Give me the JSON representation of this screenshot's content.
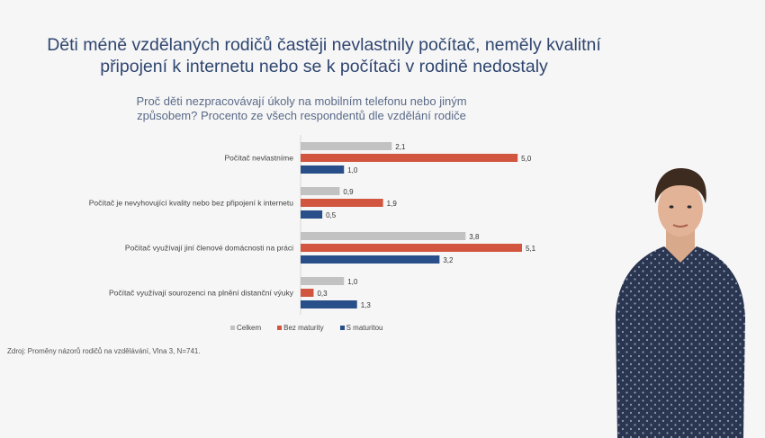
{
  "slide": {
    "title": "Děti méně vzdělaných rodičů častěji nevlastnily počítač, neměly kvalitní připojení k internetu nebo se k počítači v rodině nedostaly",
    "source": "Zdroj: Proměny názorů rodičů na vzdělávání, Vlna 3, N=741."
  },
  "colors": {
    "celkem": "#c2c2c2",
    "bez": "#d2553f",
    "s": "#284f8a"
  },
  "chart_data": {
    "type": "bar",
    "orientation": "horizontal",
    "title": "Proč děti nezpracovávají úkoly na mobilním telefonu nebo jiným způsobem? Procento ze všech respondentů dle vzdělání rodiče",
    "categories": [
      "Počítač nevlastníme",
      "Počítač je nevyhovující kvality nebo bez připojení k internetu",
      "Počítač využívají jiní členové domácnosti na práci",
      "Počítač využívají sourozenci na plnění distanční výuky"
    ],
    "series": [
      {
        "name": "Celkem",
        "values": [
          2.1,
          0.9,
          3.8,
          1.0
        ]
      },
      {
        "name": "Bez maturity",
        "values": [
          5.0,
          1.9,
          5.1,
          0.3
        ]
      },
      {
        "name": "S maturitou",
        "values": [
          1.0,
          0.5,
          3.2,
          1.3
        ]
      }
    ],
    "value_labels": [
      [
        "2,1",
        "0,9",
        "3,8",
        "1,0"
      ],
      [
        "5,0",
        "1,9",
        "5,1",
        "0,3"
      ],
      [
        "1,0",
        "0,5",
        "3,2",
        "1,3"
      ]
    ],
    "xlim": [
      0,
      5.1
    ],
    "grid": false,
    "legend_position": "bottom"
  }
}
